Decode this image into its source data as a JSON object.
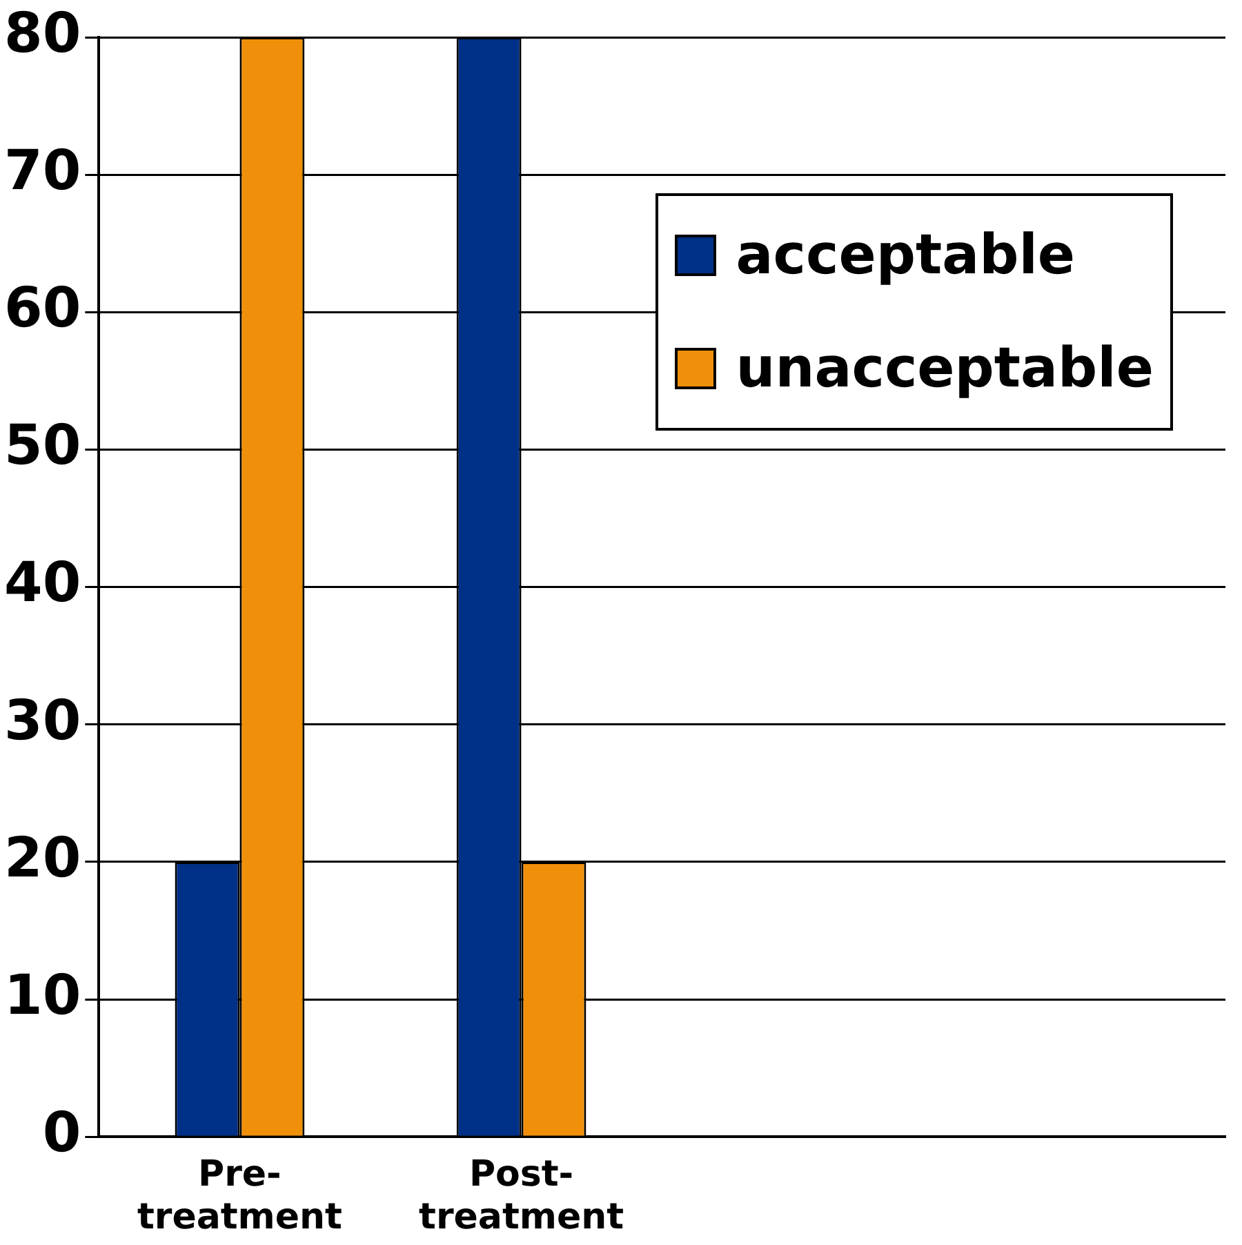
{
  "chart_data": {
    "type": "bar",
    "categories": [
      "Pre-treatment",
      "Post-treatment",
      null,
      null
    ],
    "series": [
      {
        "name": "acceptable",
        "color": "#003087",
        "values": [
          20,
          80,
          null,
          null
        ]
      },
      {
        "name": "unacceptable",
        "color": "#f0900a",
        "values": [
          80,
          20,
          null,
          null
        ]
      }
    ],
    "ylim": [
      0,
      80
    ],
    "yticks": [
      0,
      10,
      20,
      30,
      40,
      50,
      60,
      70,
      80
    ],
    "grid": "y",
    "legend": "top right"
  }
}
